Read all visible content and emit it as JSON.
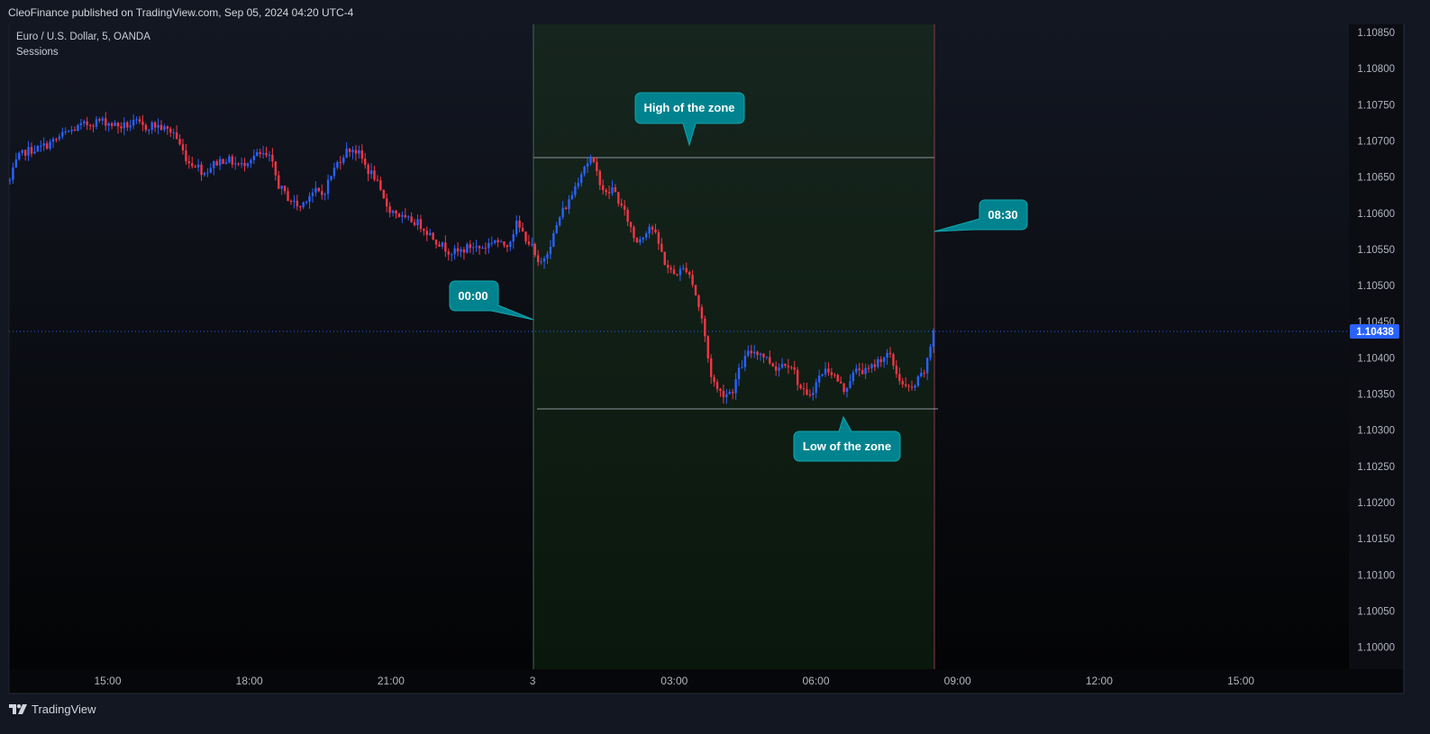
{
  "header": {
    "published": "CleoFinance published on TradingView.com, Sep 05, 2024 04:20 UTC-4"
  },
  "legend": {
    "symbol": "Euro / U.S. Dollar, 5, OANDA",
    "indicator": "Sessions"
  },
  "footer": {
    "brand": "TradingView"
  },
  "colors": {
    "background": "#131722",
    "up": "#2962ff",
    "down": "#f23645",
    "session_fill": "#16251e",
    "callout": "#00838f",
    "price_badge": "#2962ff"
  },
  "chart_data": {
    "type": "candlestick",
    "symbol": "Euro / U.S. Dollar",
    "timeframe": "5",
    "exchange": "OANDA",
    "ylim": [
      1.09975,
      1.10865
    ],
    "y_ticks": [
      "1.10850",
      "1.10800",
      "1.10750",
      "1.10700",
      "1.10650",
      "1.10600",
      "1.10550",
      "1.10500",
      "1.10450",
      "1.10400",
      "1.10350",
      "1.10300",
      "1.10250",
      "1.10200",
      "1.10150",
      "1.10100",
      "1.10050",
      "1.10000"
    ],
    "x_ticks": [
      "15:00",
      "18:00",
      "21:00",
      "3",
      "03:00",
      "06:00",
      "09:00",
      "12:00",
      "15:00"
    ],
    "last_price": "1.10438",
    "session": {
      "start": "00:00",
      "end": "08:30",
      "high": 1.1068,
      "low": 1.10332
    },
    "annotations": {
      "high": "High of the zone",
      "low": "Low of the zone",
      "start": "00:00",
      "end": "08:30"
    },
    "close_path": [
      [
        0,
        1.10645
      ],
      [
        4,
        1.10675
      ],
      [
        8,
        1.10685
      ],
      [
        12,
        1.10688
      ],
      [
        16,
        1.1069
      ],
      [
        20,
        1.10695
      ],
      [
        24,
        1.107
      ],
      [
        28,
        1.10708
      ],
      [
        32,
        1.10713
      ],
      [
        36,
        1.10718
      ],
      [
        40,
        1.10722
      ],
      [
        44,
        1.10725
      ],
      [
        48,
        1.10728
      ],
      [
        52,
        1.10726
      ],
      [
        56,
        1.10722
      ],
      [
        60,
        1.1072
      ],
      [
        64,
        1.10722
      ],
      [
        68,
        1.10725
      ],
      [
        72,
        1.10718
      ],
      [
        76,
        1.10722
      ],
      [
        80,
        1.1072
      ],
      [
        84,
        1.10715
      ],
      [
        88,
        1.10712
      ],
      [
        92,
        1.1069
      ],
      [
        96,
        1.1067
      ],
      [
        100,
        1.10668
      ],
      [
        104,
        1.10655
      ],
      [
        108,
        1.10665
      ],
      [
        112,
        1.10672
      ],
      [
        116,
        1.10675
      ],
      [
        120,
        1.1067
      ],
      [
        124,
        1.10665
      ],
      [
        128,
        1.10675
      ],
      [
        132,
        1.1068
      ],
      [
        136,
        1.1068
      ],
      [
        140,
        1.10675
      ],
      [
        144,
        1.1064
      ],
      [
        148,
        1.10625
      ],
      [
        152,
        1.10615
      ],
      [
        156,
        1.10608
      ],
      [
        160,
        1.10625
      ],
      [
        164,
        1.1063
      ],
      [
        168,
        1.10625
      ],
      [
        172,
        1.1065
      ],
      [
        176,
        1.1067
      ],
      [
        180,
        1.10685
      ],
      [
        184,
        1.1069
      ],
      [
        188,
        1.1068
      ],
      [
        192,
        1.1066
      ],
      [
        196,
        1.1065
      ],
      [
        200,
        1.1062
      ],
      [
        204,
        1.10605
      ],
      [
        208,
        1.106
      ],
      [
        212,
        1.1059
      ],
      [
        216,
        1.1059
      ],
      [
        220,
        1.10585
      ],
      [
        224,
        1.10575
      ],
      [
        228,
        1.10565
      ],
      [
        232,
        1.10555
      ],
      [
        236,
        1.10548
      ],
      [
        240,
        1.10545
      ],
      [
        244,
        1.1055
      ],
      [
        248,
        1.10555
      ],
      [
        252,
        1.10552
      ],
      [
        256,
        1.10555
      ],
      [
        260,
        1.10565
      ],
      [
        264,
        1.10555
      ],
      [
        268,
        1.1056
      ],
      [
        272,
        1.10585
      ],
      [
        276,
        1.1057
      ],
      [
        280,
        1.10555
      ],
      [
        284,
        1.10525
      ],
      [
        288,
        1.10545
      ],
      [
        292,
        1.1057
      ],
      [
        296,
        1.106
      ],
      [
        300,
        1.10615
      ],
      [
        304,
        1.1064
      ],
      [
        308,
        1.10665
      ],
      [
        312,
        1.10675
      ],
      [
        316,
        1.1065
      ],
      [
        320,
        1.10625
      ],
      [
        324,
        1.10635
      ],
      [
        328,
        1.1061
      ],
      [
        332,
        1.1059
      ],
      [
        336,
        1.1056
      ],
      [
        340,
        1.1057
      ],
      [
        344,
        1.10585
      ],
      [
        348,
        1.1056
      ],
      [
        352,
        1.1053
      ],
      [
        356,
        1.10515
      ],
      [
        360,
        1.1052
      ],
      [
        364,
        1.10525
      ],
      [
        368,
        1.1049
      ],
      [
        372,
        1.1045
      ],
      [
        376,
        1.1038
      ],
      [
        380,
        1.10355
      ],
      [
        384,
        1.1035
      ],
      [
        388,
        1.10355
      ],
      [
        392,
        1.10385
      ],
      [
        396,
        1.10405
      ],
      [
        400,
        1.1041
      ],
      [
        404,
        1.10405
      ],
      [
        408,
        1.10395
      ],
      [
        412,
        1.10385
      ],
      [
        416,
        1.10395
      ],
      [
        420,
        1.1039
      ],
      [
        424,
        1.1036
      ],
      [
        428,
        1.10345
      ],
      [
        432,
        1.1036
      ],
      [
        436,
        1.1038
      ],
      [
        440,
        1.10385
      ],
      [
        444,
        1.1037
      ],
      [
        448,
        1.10355
      ],
      [
        452,
        1.10375
      ],
      [
        456,
        1.10385
      ],
      [
        460,
        1.1038
      ],
      [
        464,
        1.1039
      ],
      [
        468,
        1.104
      ],
      [
        472,
        1.10405
      ],
      [
        476,
        1.1038
      ],
      [
        480,
        1.1036
      ],
      [
        484,
        1.10355
      ],
      [
        488,
        1.1037
      ],
      [
        492,
        1.10385
      ],
      [
        496,
        1.10438
      ]
    ]
  }
}
